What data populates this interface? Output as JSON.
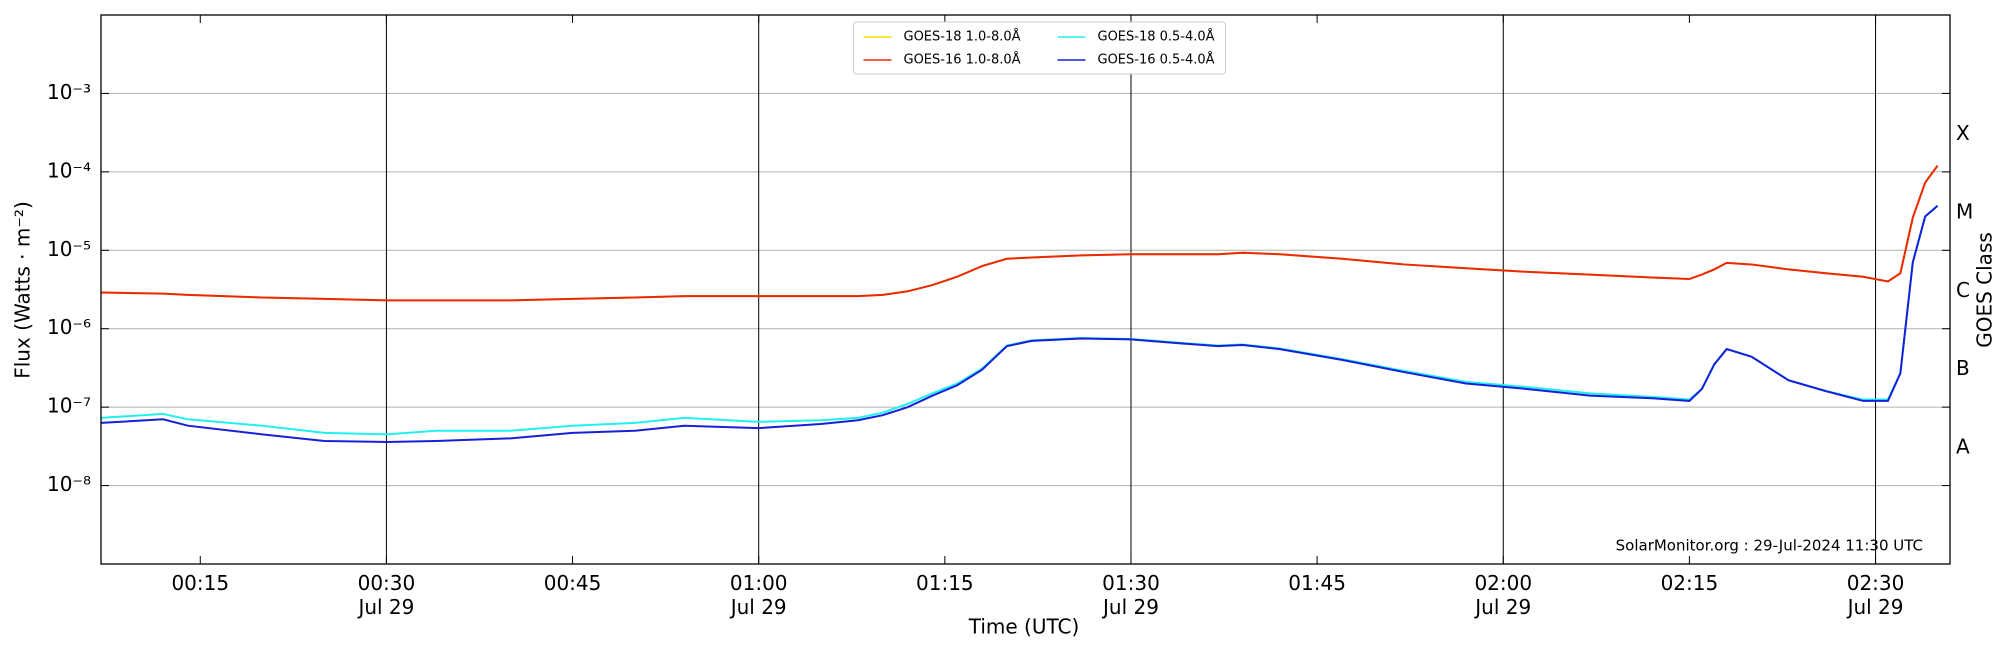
{
  "chart_data": {
    "type": "line",
    "xlabel": "Time (UTC)",
    "ylabel": "Flux (Watts · m⁻²)",
    "y2label": "GOES Class",
    "annotation": "SolarMonitor.org : 29-Jul-2024 11:30 UTC",
    "yscale": "log",
    "legend": "upper center",
    "grid": true,
    "xlim": [
      7,
      156
    ],
    "ylim": [
      1e-09,
      0.01
    ],
    "y2lim": [
      1e-09,
      0.01
    ],
    "xticks": [
      {
        "value": 15,
        "label": "00:15"
      },
      {
        "value": 30,
        "label": "00:30\nJul 29"
      },
      {
        "value": 45,
        "label": "00:45"
      },
      {
        "value": 60,
        "label": "01:00\nJul 29"
      },
      {
        "value": 75,
        "label": "01:15"
      },
      {
        "value": 90,
        "label": "01:30\nJul 29"
      },
      {
        "value": 105,
        "label": "01:45"
      },
      {
        "value": 120,
        "label": "02:00\nJul 29"
      },
      {
        "value": 135,
        "label": "02:15"
      },
      {
        "value": 150,
        "label": "02:30\nJul 29"
      }
    ],
    "yticks": [
      {
        "value": 1e-08,
        "label": "10⁻⁸"
      },
      {
        "value": 1e-07,
        "label": "10⁻⁷"
      },
      {
        "value": 1e-06,
        "label": "10⁻⁶"
      },
      {
        "value": 1e-05,
        "label": "10⁻⁵"
      },
      {
        "value": 0.0001,
        "label": "10⁻⁴"
      },
      {
        "value": 0.001,
        "label": "10⁻³"
      }
    ],
    "y2ticks": [
      {
        "value": 3e-08,
        "label": "A"
      },
      {
        "value": 3e-07,
        "label": "B"
      },
      {
        "value": 3e-06,
        "label": "C"
      },
      {
        "value": 3e-05,
        "label": "M"
      },
      {
        "value": 0.0003,
        "label": "X"
      }
    ],
    "x": [
      7,
      12,
      14,
      20,
      25,
      30,
      34,
      40,
      45,
      50,
      54,
      60,
      65,
      68,
      70,
      72,
      74,
      76,
      78,
      80,
      82,
      86,
      90,
      94,
      97,
      99,
      102,
      107,
      112,
      117,
      122,
      127,
      132,
      135,
      136,
      137,
      138,
      140,
      143,
      146,
      149,
      151,
      152,
      153,
      154,
      155
    ],
    "series": [
      {
        "name": "GOES-18 1.0-8.0Å",
        "color": "#ffd700",
        "values": [
          2.9e-06,
          2.8e-06,
          2.7e-06,
          2.5e-06,
          2.4e-06,
          2.3e-06,
          2.3e-06,
          2.3e-06,
          2.4e-06,
          2.5e-06,
          2.6e-06,
          2.6e-06,
          2.6e-06,
          2.6e-06,
          2.7e-06,
          3e-06,
          3.6e-06,
          4.6e-06,
          6.3e-06,
          7.8e-06,
          8.1e-06,
          8.6e-06,
          8.9e-06,
          8.9e-06,
          8.9e-06,
          9.3e-06,
          8.9e-06,
          7.8e-06,
          6.6e-06,
          5.9e-06,
          5.3e-06,
          4.9e-06,
          4.5e-06,
          4.3e-06,
          4.9e-06,
          5.7e-06,
          6.9e-06,
          6.6e-06,
          5.7e-06,
          5.1e-06,
          4.6e-06,
          4e-06,
          5.1e-06,
          2.6e-05,
          7.3e-05,
          0.00012
        ]
      },
      {
        "name": "GOES-16 1.0-8.0Å",
        "color": "#e8290b",
        "values": [
          2.9e-06,
          2.8e-06,
          2.7e-06,
          2.5e-06,
          2.4e-06,
          2.3e-06,
          2.3e-06,
          2.3e-06,
          2.4e-06,
          2.5e-06,
          2.6e-06,
          2.6e-06,
          2.6e-06,
          2.6e-06,
          2.7e-06,
          3e-06,
          3.6e-06,
          4.6e-06,
          6.3e-06,
          7.8e-06,
          8.1e-06,
          8.6e-06,
          8.9e-06,
          8.9e-06,
          8.9e-06,
          9.3e-06,
          8.9e-06,
          7.8e-06,
          6.6e-06,
          5.9e-06,
          5.3e-06,
          4.9e-06,
          4.5e-06,
          4.3e-06,
          4.9e-06,
          5.7e-06,
          6.9e-06,
          6.6e-06,
          5.7e-06,
          5.1e-06,
          4.6e-06,
          4e-06,
          5.1e-06,
          2.6e-05,
          7.3e-05,
          0.00012
        ]
      },
      {
        "name": "GOES-18 0.5-4.0Å",
        "color": "#22f0f0",
        "values": [
          7.3e-08,
          8.2e-08,
          7e-08,
          5.8e-08,
          4.7e-08,
          4.5e-08,
          5e-08,
          5e-08,
          5.8e-08,
          6.3e-08,
          7.3e-08,
          6.5e-08,
          6.8e-08,
          7.3e-08,
          8.5e-08,
          1.1e-07,
          1.5e-07,
          2e-07,
          3.1e-07,
          6.1e-07,
          7.1e-07,
          7.6e-07,
          7.4e-07,
          6.6e-07,
          6.1e-07,
          6.3e-07,
          5.6e-07,
          4.1e-07,
          2.9e-07,
          2.1e-07,
          1.8e-07,
          1.5e-07,
          1.35e-07,
          1.25e-07,
          1.7e-07,
          3.5e-07,
          5.5e-07,
          4.4e-07,
          2.2e-07,
          1.6e-07,
          1.25e-07,
          1.25e-07,
          2.7e-07,
          7e-06,
          2.7e-05,
          3.7e-05
        ]
      },
      {
        "name": "GOES-16 0.5-4.0Å",
        "color": "#1520d8",
        "values": [
          6.3e-08,
          7e-08,
          5.8e-08,
          4.5e-08,
          3.7e-08,
          3.6e-08,
          3.7e-08,
          4e-08,
          4.7e-08,
          5e-08,
          5.8e-08,
          5.4e-08,
          6.1e-08,
          6.8e-08,
          7.9e-08,
          1e-07,
          1.4e-07,
          1.9e-07,
          3e-07,
          6e-07,
          7e-07,
          7.5e-07,
          7.3e-07,
          6.5e-07,
          6e-07,
          6.2e-07,
          5.5e-07,
          4e-07,
          2.8e-07,
          2e-07,
          1.7e-07,
          1.4e-07,
          1.3e-07,
          1.2e-07,
          1.7e-07,
          3.5e-07,
          5.5e-07,
          4.4e-07,
          2.2e-07,
          1.6e-07,
          1.2e-07,
          1.2e-07,
          2.7e-07,
          7e-06,
          2.7e-05,
          3.7e-05
        ]
      }
    ]
  }
}
